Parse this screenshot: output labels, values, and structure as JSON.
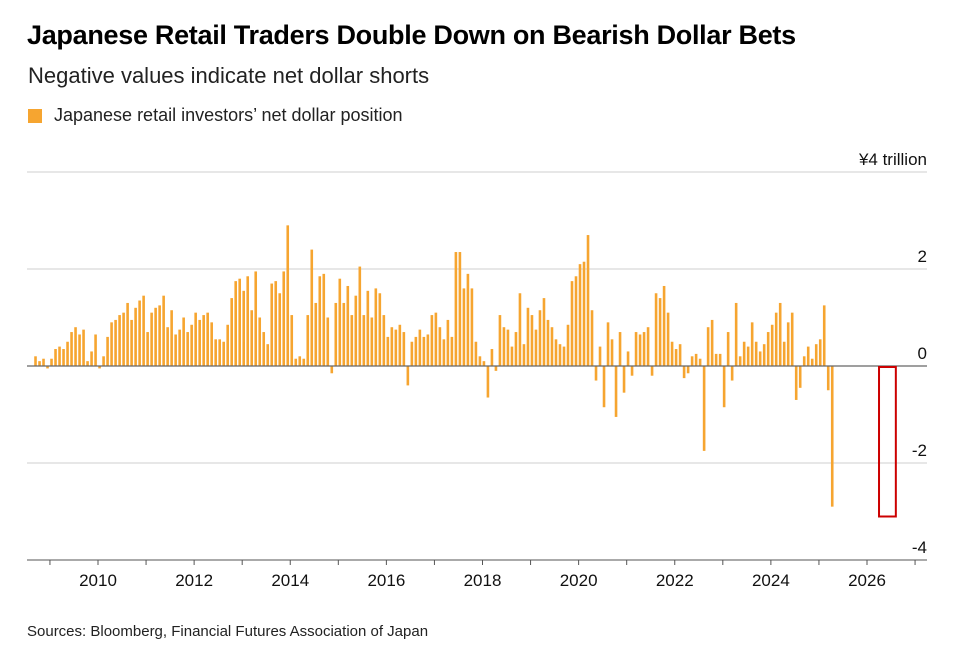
{
  "header": {
    "title": "Japanese Retail Traders Double Down on Bearish Dollar Bets",
    "subtitle": "Negative values indicate net dollar shorts"
  },
  "legend": {
    "label": "Japanese retail investors’ net dollar position",
    "color": "#f6a530"
  },
  "source": "Sources: Bloomberg, Financial Futures Association of Japan",
  "highlight": {
    "color": "#cc0000",
    "from_x": 2026.25,
    "to_x": 2026.6
  },
  "chart_data": {
    "type": "bar",
    "title": "Japanese Retail Traders Double Down on Bearish Dollar Bets",
    "subtitle": "Negative values indicate net dollar shorts",
    "series_name": "Japanese retail investors’ net dollar position",
    "unit_label": "¥4 trillion",
    "x_start": 2008.7,
    "x_step": 0.0833,
    "xlim": [
      2008.7,
      2027.2
    ],
    "ylim": [
      -4,
      4
    ],
    "y_ticks": [
      {
        "v": 4,
        "label": "¥4 trillion"
      },
      {
        "v": 2,
        "label": "2"
      },
      {
        "v": 0,
        "label": "0"
      },
      {
        "v": -2,
        "label": "-2"
      },
      {
        "v": -4,
        "label": "-4"
      }
    ],
    "x_ticks": [
      "2010",
      "2012",
      "2014",
      "2016",
      "2018",
      "2020",
      "2022",
      "2024",
      "2026"
    ],
    "x_tick_values": [
      2010,
      2012,
      2014,
      2016,
      2018,
      2020,
      2022,
      2024,
      2026
    ],
    "grid": true,
    "bar_color": "#f6a530",
    "values": [
      0.2,
      0.1,
      0.15,
      -0.05,
      0.15,
      0.35,
      0.4,
      0.35,
      0.5,
      0.7,
      0.8,
      0.65,
      0.75,
      0.1,
      0.3,
      0.65,
      -0.05,
      0.2,
      0.6,
      0.9,
      0.95,
      1.05,
      1.1,
      1.3,
      0.95,
      1.2,
      1.35,
      1.45,
      0.7,
      1.1,
      1.2,
      1.25,
      1.45,
      0.8,
      1.15,
      0.65,
      0.75,
      1.0,
      0.7,
      0.85,
      1.1,
      0.95,
      1.05,
      1.1,
      0.9,
      0.55,
      0.55,
      0.5,
      0.85,
      1.4,
      1.75,
      1.8,
      1.55,
      1.85,
      1.15,
      1.95,
      1.0,
      0.7,
      0.45,
      1.7,
      1.75,
      1.5,
      1.95,
      2.9,
      1.05,
      0.15,
      0.2,
      0.15,
      1.05,
      2.4,
      1.3,
      1.85,
      1.9,
      1.0,
      -0.15,
      1.3,
      1.8,
      1.3,
      1.65,
      1.05,
      1.45,
      2.05,
      1.05,
      1.55,
      1.0,
      1.6,
      1.5,
      1.05,
      0.6,
      0.8,
      0.75,
      0.85,
      0.7,
      -0.4,
      0.5,
      0.6,
      0.75,
      0.6,
      0.65,
      1.05,
      1.1,
      0.8,
      0.55,
      0.95,
      0.6,
      2.35,
      2.35,
      1.6,
      1.9,
      1.6,
      0.5,
      0.2,
      0.1,
      -0.65,
      0.35,
      -0.1,
      1.05,
      0.8,
      0.75,
      0.4,
      0.7,
      1.5,
      0.45,
      1.2,
      1.05,
      0.75,
      1.15,
      1.4,
      0.95,
      0.8,
      0.55,
      0.45,
      0.4,
      0.85,
      1.75,
      1.85,
      2.1,
      2.15,
      2.7,
      1.15,
      -0.3,
      0.4,
      -0.85,
      0.9,
      0.55,
      -1.05,
      0.7,
      -0.55,
      0.3,
      -0.2,
      0.7,
      0.65,
      0.7,
      0.8,
      -0.2,
      1.5,
      1.4,
      1.65,
      1.1,
      0.5,
      0.35,
      0.45,
      -0.25,
      -0.15,
      0.2,
      0.25,
      0.15,
      -1.75,
      0.8,
      0.95,
      0.25,
      0.25,
      -0.85,
      0.7,
      -0.3,
      1.3,
      0.2,
      0.5,
      0.4,
      0.9,
      0.5,
      0.3,
      0.45,
      0.7,
      0.85,
      1.1,
      1.3,
      0.5,
      0.9,
      1.1,
      -0.7,
      -0.45,
      0.2,
      0.4,
      0.15,
      0.45,
      0.55,
      1.25,
      -0.5,
      -2.9
    ]
  }
}
